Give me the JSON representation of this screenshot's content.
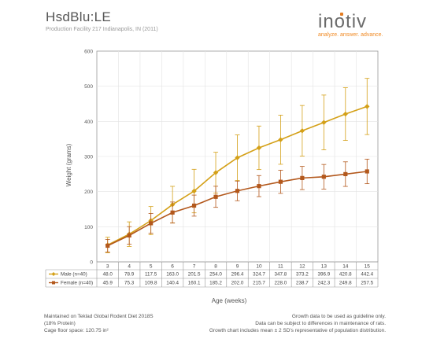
{
  "header": {
    "title": "HsdBlu:LE",
    "subtitle": "Production Facility 217 Indianapolis, IN (2011)",
    "logo_text": "inotiv",
    "tagline": "analyze. answer. advance."
  },
  "colors": {
    "male": "#d4a017",
    "female": "#b3581c",
    "grid": "#e3e3e3",
    "axis": "#999999",
    "accent": "#f08a24"
  },
  "chart_data": {
    "type": "line",
    "title": "",
    "xlabel": "Age (weeks)",
    "ylabel": "Weight (grams)",
    "ylim": [
      0,
      600
    ],
    "yticks": [
      0,
      100,
      200,
      300,
      400,
      500,
      600
    ],
    "x": [
      "3",
      "4",
      "5",
      "6",
      "7",
      "8",
      "9",
      "10",
      "11",
      "12",
      "13",
      "14",
      "15"
    ],
    "grid": true,
    "legend": "table-below",
    "series": [
      {
        "name": "Male (n=40)",
        "values": [
          48.0,
          78.9,
          117.5,
          163.0,
          201.5,
          254.0,
          296.4,
          324.7,
          347.8,
          373.2,
          396.9,
          420.8,
          442.4
        ],
        "labels": [
          "48.0",
          "78.9",
          "117.5",
          "163.0",
          "201.5",
          "254.0",
          "296.4",
          "324.7",
          "347.8",
          "373.2",
          "396.9",
          "420.8",
          "442.4"
        ],
        "err": [
          22,
          35,
          40,
          52,
          62,
          58,
          65,
          62,
          70,
          72,
          78,
          75,
          80
        ]
      },
      {
        "name": "Female (n=40)",
        "values": [
          45.9,
          75.3,
          109.8,
          140.4,
          160.1,
          185.2,
          202.0,
          215.7,
          228.0,
          238.7,
          242.3,
          249.8,
          257.5
        ],
        "labels": [
          "45.9",
          "75.3",
          "109.8",
          "140.4",
          "160.1",
          "185.2",
          "202.0",
          "215.7",
          "228.0",
          "238.7",
          "242.3",
          "249.8",
          "257.5"
        ],
        "err": [
          18,
          25,
          28,
          30,
          30,
          30,
          28,
          30,
          33,
          33,
          35,
          35,
          35
        ]
      }
    ]
  },
  "footer": {
    "left_lines": [
      "Maintained on Teklad Global Rodent Diet 2018S",
      "(18% Protein)",
      "Cage floor space: 120.75 in²"
    ],
    "right_lines": [
      "Growth data to be used as guideline only.",
      "Data can be subject to differences in maintenance of rats.",
      "Growth chart includes mean ± 2 SD's representative of population distribution."
    ]
  }
}
